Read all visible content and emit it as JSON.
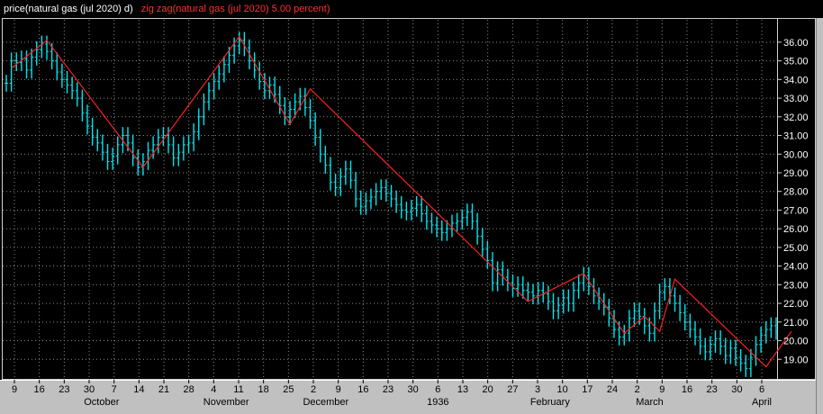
{
  "legend": {
    "price_label": "price(natural gas (jul 2020) d)",
    "zigzag_label": "zig zag(natural gas (jul 2020) 5.00 percent)"
  },
  "colors": {
    "background": "#000000",
    "price_bars": "#00e5ee",
    "zigzag_line": "#ff2020",
    "grid": "#8a8a8a",
    "axis_text": "#000000"
  },
  "chart_data": {
    "type": "line",
    "title": "",
    "xlabel": "",
    "ylabel": "",
    "ylim": [
      18.0,
      37.2
    ],
    "grid": true,
    "legend_position": "top-left",
    "y_ticks": [
      "19.00",
      "20.00",
      "21.00",
      "22.00",
      "23.00",
      "24.00",
      "25.00",
      "26.00",
      "27.00",
      "28.00",
      "29.00",
      "30.00",
      "31.00",
      "32.00",
      "33.00",
      "34.00",
      "35.00",
      "36.00"
    ],
    "x_day_ticks": [
      "9",
      "16",
      "23",
      "30",
      "7",
      "14",
      "21",
      "28",
      "4",
      "11",
      "18",
      "25",
      "2",
      "9",
      "16",
      "23",
      "30",
      "6",
      "13",
      "20",
      "27",
      "3",
      "10",
      "17",
      "24",
      "2",
      "9",
      "16",
      "23",
      "30",
      "6"
    ],
    "x_month_labels": [
      "October",
      "November",
      "December",
      "1936",
      "February",
      "March",
      "April"
    ],
    "price_closes": [
      33.8,
      35.0,
      34.9,
      35.1,
      34.5,
      35.2,
      35.6,
      35.9,
      35.5,
      35.0,
      34.4,
      34.0,
      33.7,
      33.4,
      33.0,
      32.2,
      31.5,
      30.9,
      30.6,
      30.1,
      29.6,
      29.9,
      30.5,
      31.0,
      30.6,
      29.8,
      29.3,
      29.6,
      30.2,
      30.5,
      30.9,
      31.0,
      30.5,
      29.8,
      30.1,
      30.5,
      30.6,
      31.2,
      32.0,
      32.8,
      33.4,
      33.9,
      34.3,
      34.8,
      35.3,
      35.8,
      36.1,
      35.7,
      35.0,
      34.5,
      33.9,
      33.4,
      33.7,
      33.2,
      32.6,
      32.0,
      32.4,
      32.8,
      33.1,
      32.5,
      31.8,
      30.9,
      30.0,
      29.4,
      28.5,
      28.2,
      28.8,
      29.2,
      28.6,
      27.6,
      27.2,
      27.5,
      27.7,
      28.0,
      28.2,
      27.9,
      27.6,
      27.3,
      27.0,
      26.9,
      27.1,
      27.3,
      26.8,
      26.4,
      26.2,
      26.0,
      25.8,
      26.0,
      26.3,
      26.4,
      26.6,
      26.9,
      26.4,
      25.6,
      24.9,
      24.3,
      23.1,
      23.8,
      23.4,
      23.1,
      22.8,
      23.0,
      22.7,
      22.6,
      22.4,
      22.7,
      22.5,
      22.1,
      21.6,
      21.9,
      22.3,
      22.0,
      22.7,
      23.1,
      23.5,
      22.9,
      22.4,
      22.1,
      21.8,
      21.2,
      20.6,
      20.2,
      20.4,
      21.2,
      21.6,
      21.3,
      20.8,
      20.4,
      21.6,
      22.6,
      22.9,
      22.4,
      22.0,
      21.5,
      21.0,
      20.6,
      20.2,
      19.7,
      19.4,
      19.8,
      20.1,
      19.7,
      19.2,
      19.6,
      19.1,
      18.8,
      18.5,
      19.1,
      19.8,
      20.3,
      20.6,
      20.8,
      20.5
    ],
    "zigzag_points": [
      {
        "bar": 1,
        "value": 34.6
      },
      {
        "bar": 8,
        "value": 36.1
      },
      {
        "bar": 27,
        "value": 29.3
      },
      {
        "bar": 46,
        "value": 36.3
      },
      {
        "bar": 56,
        "value": 31.6
      },
      {
        "bar": 60,
        "value": 33.5
      },
      {
        "bar": 103,
        "value": 22.1
      },
      {
        "bar": 114,
        "value": 23.6
      },
      {
        "bar": 122,
        "value": 20.4
      },
      {
        "bar": 126,
        "value": 21.3
      },
      {
        "bar": 129,
        "value": 20.5
      },
      {
        "bar": 132,
        "value": 23.3
      },
      {
        "bar": 150,
        "value": 18.6
      },
      {
        "bar": 155,
        "value": 20.5
      }
    ]
  }
}
